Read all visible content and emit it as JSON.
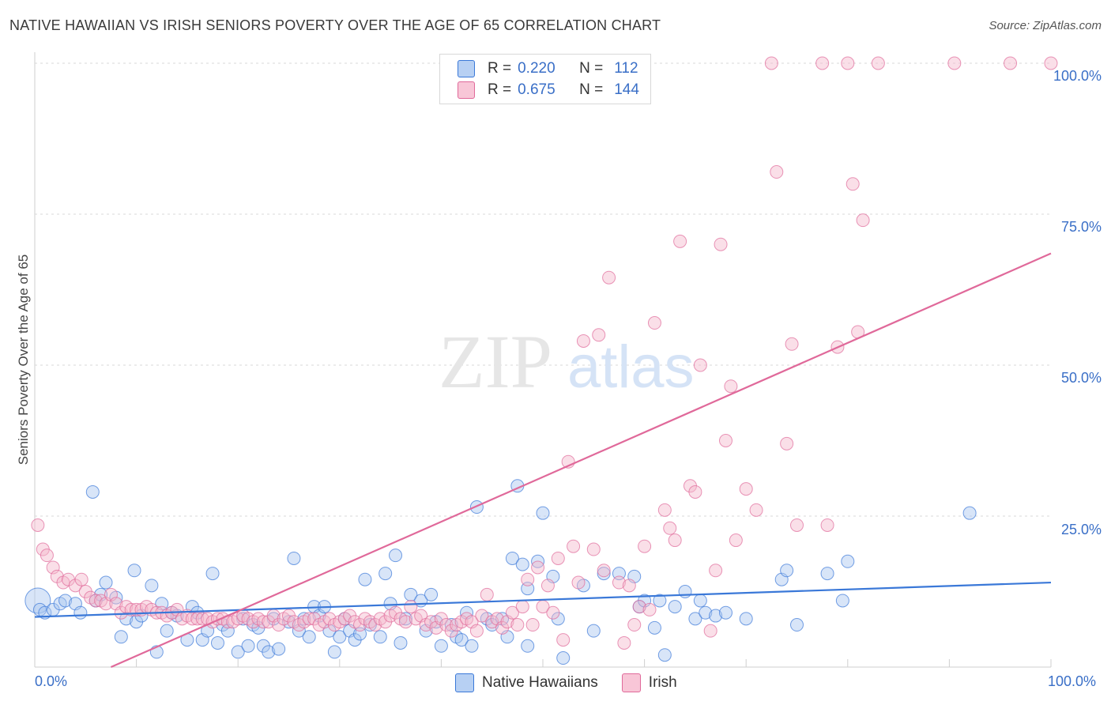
{
  "title": "NATIVE HAWAIIAN VS IRISH SENIORS POVERTY OVER THE AGE OF 65 CORRELATION CHART",
  "source": "Source: ZipAtlas.com",
  "watermark": {
    "zip": "ZIP",
    "atlas": "atlas"
  },
  "colors": {
    "blue": "#3a78d8",
    "blue_fill": "#a9c6f0",
    "pink": "#e0699a",
    "pink_fill": "#f5b8cd",
    "grid": "#d9d9d9",
    "tick_text": "#3a6fc7"
  },
  "legend": {
    "rows": [
      {
        "r_label": "R =",
        "r_value": "0.220",
        "n_label": "N =",
        "n_value": "112"
      },
      {
        "r_label": "R =",
        "r_value": "0.675",
        "n_label": "N =",
        "n_value": "144"
      }
    ]
  },
  "bottom_legend": [
    "Native Hawaiians",
    "Irish"
  ],
  "chart_data": {
    "type": "scatter",
    "xlabel": "",
    "ylabel": "Seniors Poverty Over the Age of 65",
    "xlim": [
      0,
      100
    ],
    "ylim": [
      0,
      100
    ],
    "x_tick_labels": [
      "0.0%",
      "100.0%"
    ],
    "y_tick_labels": [
      "25.0%",
      "50.0%",
      "75.0%",
      "100.0%"
    ],
    "y_ticks": [
      25,
      50,
      75,
      100
    ],
    "grid": true,
    "series": [
      {
        "name": "Native Hawaiians",
        "r": 0.22,
        "n": 112,
        "trend": {
          "x": [
            0,
            100
          ],
          "y": [
            8.3,
            14.0
          ]
        },
        "points": [
          [
            0.3,
            11
          ],
          [
            0.5,
            9.5
          ],
          [
            1,
            9
          ],
          [
            1.8,
            9.5
          ],
          [
            2.5,
            10.5
          ],
          [
            3,
            11
          ],
          [
            4,
            10.5
          ],
          [
            4.5,
            9
          ],
          [
            5.7,
            29
          ],
          [
            6,
            11
          ],
          [
            6.5,
            12
          ],
          [
            7,
            14
          ],
          [
            8,
            11.5
          ],
          [
            8.5,
            5
          ],
          [
            9,
            8
          ],
          [
            9.8,
            16
          ],
          [
            10,
            7.5
          ],
          [
            10.5,
            8.5
          ],
          [
            11.5,
            13.5
          ],
          [
            12,
            2.5
          ],
          [
            12.5,
            10.5
          ],
          [
            13,
            6
          ],
          [
            13.5,
            9
          ],
          [
            14,
            8.5
          ],
          [
            15,
            4.5
          ],
          [
            15.5,
            10
          ],
          [
            16,
            9
          ],
          [
            16.5,
            4.5
          ],
          [
            17,
            6
          ],
          [
            17.5,
            15.5
          ],
          [
            18,
            4
          ],
          [
            18.5,
            7
          ],
          [
            19,
            6
          ],
          [
            20,
            2.5
          ],
          [
            20.5,
            8
          ],
          [
            21,
            3.5
          ],
          [
            21.5,
            7
          ],
          [
            22,
            6.5
          ],
          [
            22.5,
            3.5
          ],
          [
            23,
            2.5
          ],
          [
            23.5,
            8
          ],
          [
            24,
            3
          ],
          [
            25,
            7.5
          ],
          [
            25.5,
            18
          ],
          [
            26,
            6
          ],
          [
            26.5,
            8
          ],
          [
            27,
            5
          ],
          [
            27.5,
            10
          ],
          [
            28,
            8.5
          ],
          [
            28.5,
            10
          ],
          [
            29,
            6
          ],
          [
            29.5,
            2.5
          ],
          [
            30,
            5
          ],
          [
            30.5,
            8
          ],
          [
            31,
            6
          ],
          [
            31.5,
            4.5
          ],
          [
            32,
            5.5
          ],
          [
            32.5,
            14.5
          ],
          [
            33,
            7
          ],
          [
            34,
            5
          ],
          [
            34.5,
            15.5
          ],
          [
            35,
            10.5
          ],
          [
            35.5,
            18.5
          ],
          [
            36,
            4
          ],
          [
            36.5,
            8
          ],
          [
            37,
            12
          ],
          [
            38,
            11
          ],
          [
            38.5,
            6
          ],
          [
            39,
            12
          ],
          [
            39.5,
            7.5
          ],
          [
            40,
            3.5
          ],
          [
            41,
            7
          ],
          [
            41.5,
            5
          ],
          [
            42,
            4.5
          ],
          [
            42.5,
            9
          ],
          [
            43,
            3.5
          ],
          [
            43.5,
            26.5
          ],
          [
            44.5,
            8
          ],
          [
            45,
            7
          ],
          [
            46,
            8
          ],
          [
            46.5,
            5
          ],
          [
            47,
            18
          ],
          [
            47.5,
            30
          ],
          [
            48,
            17
          ],
          [
            48.5,
            3.5
          ],
          [
            48.5,
            13
          ],
          [
            49.5,
            17.5
          ],
          [
            50,
            25.5
          ],
          [
            51,
            15
          ],
          [
            51.5,
            8
          ],
          [
            52,
            1.5
          ],
          [
            54,
            13.5
          ],
          [
            55,
            6
          ],
          [
            56,
            15.5
          ],
          [
            57.5,
            15.5
          ],
          [
            59,
            15
          ],
          [
            59.5,
            10
          ],
          [
            60,
            11
          ],
          [
            61,
            6.5
          ],
          [
            61.5,
            11
          ],
          [
            62,
            2
          ],
          [
            63,
            10
          ],
          [
            64,
            12.5
          ],
          [
            65,
            8
          ],
          [
            65.5,
            11
          ],
          [
            66,
            9
          ],
          [
            67,
            8.5
          ],
          [
            68,
            9
          ],
          [
            70,
            8
          ],
          [
            73.5,
            14.5
          ],
          [
            74,
            16
          ],
          [
            75,
            7
          ],
          [
            78,
            15.5
          ],
          [
            80,
            17.5
          ],
          [
            79.5,
            11
          ],
          [
            92,
            25.5
          ]
        ]
      },
      {
        "name": "Irish",
        "r": 0.675,
        "n": 144,
        "trend": {
          "x": [
            7.5,
            100
          ],
          "y": [
            0,
            68.5
          ]
        },
        "points": [
          [
            0.3,
            23.5
          ],
          [
            0.8,
            19.5
          ],
          [
            1.2,
            18.5
          ],
          [
            1.8,
            16.5
          ],
          [
            2.2,
            15
          ],
          [
            2.8,
            14
          ],
          [
            3.3,
            14.5
          ],
          [
            4,
            13.5
          ],
          [
            4.6,
            14.5
          ],
          [
            5,
            12.5
          ],
          [
            5.5,
            11.5
          ],
          [
            6,
            11
          ],
          [
            6.5,
            11
          ],
          [
            7,
            10.5
          ],
          [
            7.5,
            12
          ],
          [
            8,
            10.5
          ],
          [
            8.5,
            9
          ],
          [
            9,
            10
          ],
          [
            9.5,
            9.5
          ],
          [
            10,
            9.5
          ],
          [
            10.5,
            9.5
          ],
          [
            11,
            10
          ],
          [
            11.5,
            9.5
          ],
          [
            12,
            9
          ],
          [
            12.5,
            9
          ],
          [
            13,
            8.5
          ],
          [
            13.5,
            9
          ],
          [
            14,
            9.5
          ],
          [
            14.5,
            8
          ],
          [
            15,
            8.5
          ],
          [
            15.5,
            8
          ],
          [
            16,
            8
          ],
          [
            16.5,
            8
          ],
          [
            17,
            8
          ],
          [
            17.5,
            7.5
          ],
          [
            18,
            8
          ],
          [
            18.5,
            8
          ],
          [
            19,
            7.5
          ],
          [
            19.5,
            7.5
          ],
          [
            20,
            8
          ],
          [
            20.5,
            8.5
          ],
          [
            21,
            8
          ],
          [
            21.5,
            7.5
          ],
          [
            22,
            8
          ],
          [
            22.5,
            7.5
          ],
          [
            23,
            7.5
          ],
          [
            23.5,
            8.5
          ],
          [
            24,
            7
          ],
          [
            24.5,
            8
          ],
          [
            25,
            8.5
          ],
          [
            25.5,
            7.5
          ],
          [
            26,
            7
          ],
          [
            26.5,
            7.5
          ],
          [
            27,
            8
          ],
          [
            27.5,
            8
          ],
          [
            28,
            7
          ],
          [
            28.5,
            7.5
          ],
          [
            29,
            8
          ],
          [
            29.5,
            7
          ],
          [
            30,
            7.5
          ],
          [
            30.5,
            8
          ],
          [
            31,
            8.5
          ],
          [
            31.5,
            7.5
          ],
          [
            32,
            7
          ],
          [
            32.5,
            8
          ],
          [
            33,
            7.5
          ],
          [
            33.5,
            7
          ],
          [
            34,
            8
          ],
          [
            34.5,
            7.5
          ],
          [
            35,
            8.5
          ],
          [
            35.5,
            9
          ],
          [
            36,
            8
          ],
          [
            36.5,
            7.5
          ],
          [
            37,
            10
          ],
          [
            37.5,
            8
          ],
          [
            38,
            8.5
          ],
          [
            38.5,
            7
          ],
          [
            39,
            7.5
          ],
          [
            39.5,
            6.5
          ],
          [
            40,
            8
          ],
          [
            40.5,
            7
          ],
          [
            41,
            6
          ],
          [
            41.5,
            7
          ],
          [
            42,
            7.5
          ],
          [
            42.5,
            8
          ],
          [
            43,
            7.5
          ],
          [
            43.5,
            6
          ],
          [
            44,
            8.5
          ],
          [
            44.5,
            12
          ],
          [
            45,
            7.5
          ],
          [
            45.5,
            8
          ],
          [
            46,
            6.5
          ],
          [
            46.5,
            7.5
          ],
          [
            47,
            9
          ],
          [
            47.5,
            7
          ],
          [
            48,
            10
          ],
          [
            48.5,
            14.5
          ],
          [
            49,
            7
          ],
          [
            49.5,
            16.5
          ],
          [
            50,
            10
          ],
          [
            50.5,
            13.5
          ],
          [
            51,
            9
          ],
          [
            51.5,
            18
          ],
          [
            52,
            4.5
          ],
          [
            52.5,
            34
          ],
          [
            53,
            20
          ],
          [
            53.5,
            14
          ],
          [
            54,
            54
          ],
          [
            55,
            19.5
          ],
          [
            55.5,
            55
          ],
          [
            56,
            16
          ],
          [
            56.5,
            64.5
          ],
          [
            57.5,
            14
          ],
          [
            58,
            4
          ],
          [
            58.5,
            13.5
          ],
          [
            59,
            7
          ],
          [
            59.5,
            10
          ],
          [
            60,
            20
          ],
          [
            60.5,
            9.5
          ],
          [
            61,
            57
          ],
          [
            62,
            26
          ],
          [
            62.5,
            23
          ],
          [
            63,
            21
          ],
          [
            63.5,
            70.5
          ],
          [
            64.5,
            30
          ],
          [
            65,
            29
          ],
          [
            65.5,
            50
          ],
          [
            66.5,
            6
          ],
          [
            67,
            16
          ],
          [
            67.5,
            70
          ],
          [
            68,
            37.5
          ],
          [
            68.5,
            46.5
          ],
          [
            69,
            21
          ],
          [
            70,
            29.5
          ],
          [
            71,
            26
          ],
          [
            72.5,
            100
          ],
          [
            73,
            82
          ],
          [
            74,
            37
          ],
          [
            74.5,
            53.5
          ],
          [
            75,
            23.5
          ],
          [
            77.5,
            100
          ],
          [
            78,
            23.5
          ],
          [
            79,
            53
          ],
          [
            80,
            100
          ],
          [
            80.5,
            80
          ],
          [
            81.5,
            74
          ],
          [
            81,
            55.5
          ],
          [
            83,
            100
          ],
          [
            90.5,
            100
          ],
          [
            96,
            100
          ],
          [
            100,
            100
          ]
        ]
      }
    ]
  }
}
